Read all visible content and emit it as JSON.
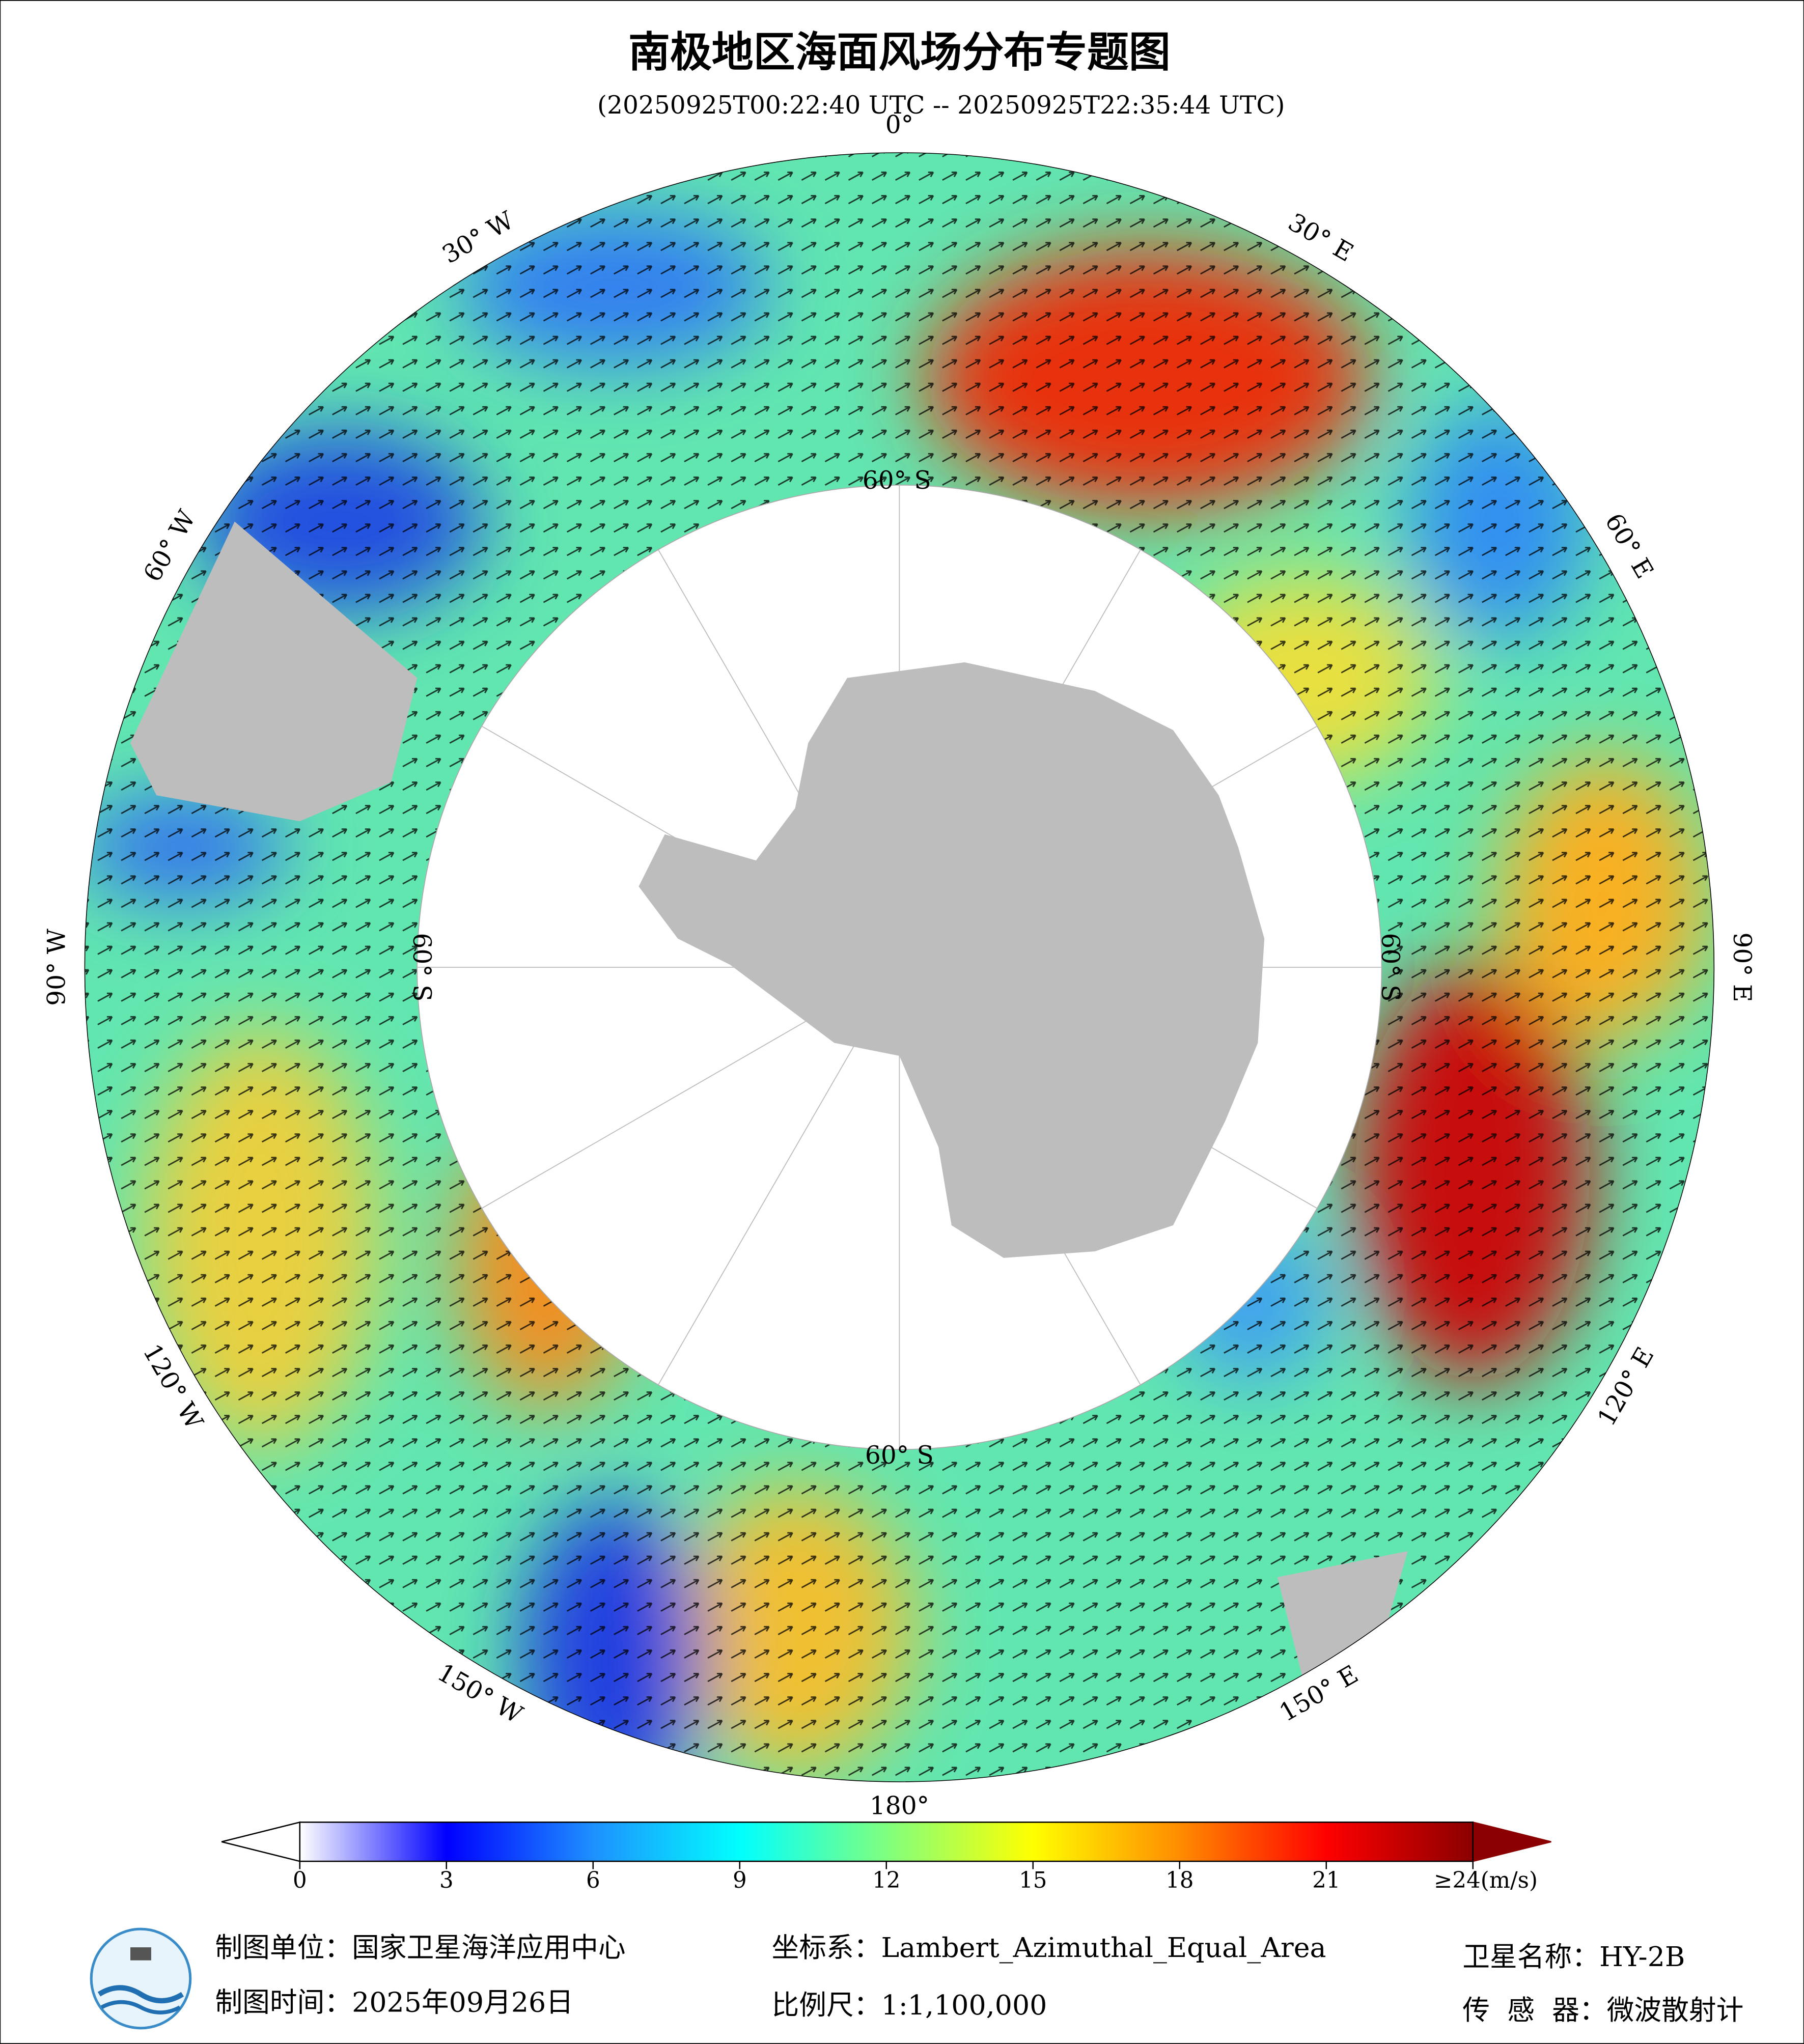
{
  "title": "南极地区海面风场分布专题图",
  "subtitle": "(20250925T00:22:40 UTC -- 20250925T22:35:44 UTC)",
  "meridians": [
    {
      "value": 0,
      "label": "0°"
    },
    {
      "value": 30,
      "label": "30° E"
    },
    {
      "value": 60,
      "label": "60° E"
    },
    {
      "value": 90,
      "label": "90° E"
    },
    {
      "value": 120,
      "label": "120° E"
    },
    {
      "value": 150,
      "label": "150° E"
    },
    {
      "value": 180,
      "label": "180°"
    },
    {
      "value": -150,
      "label": "150° W"
    },
    {
      "value": -120,
      "label": "120° W"
    },
    {
      "value": -90,
      "label": "90° W"
    },
    {
      "value": -60,
      "label": "60° W"
    },
    {
      "value": -30,
      "label": "30° W"
    }
  ],
  "parallel_labels": [
    "60° S",
    "60° S",
    "60° S",
    "60° S"
  ],
  "colorbar": {
    "range": [
      0,
      24
    ],
    "ticks": [
      0,
      3,
      6,
      9,
      12,
      15,
      18,
      21,
      {
        "value": 24,
        "label": "≥24(m/s)"
      }
    ],
    "colors": [
      "#ffffff",
      "#0000ff",
      "#1e90ff",
      "#00ffff",
      "#7fff7f",
      "#ffff00",
      "#ff8c00",
      "#ff0000",
      "#8b0000"
    ],
    "under_color": "#ffffff",
    "over_color": "#8b0000"
  },
  "footer": {
    "organization": "制图单位：国家卫星海洋应用中心",
    "date": "制图时间：2025年09月26日",
    "projection": "坐标系：Lambert_Azimuthal_Equal_Area",
    "scale": "比例尺：1:1,100,000",
    "satellite": "卫星名称：HY-2B",
    "sensor": "传  感  器：微波散射计"
  }
}
